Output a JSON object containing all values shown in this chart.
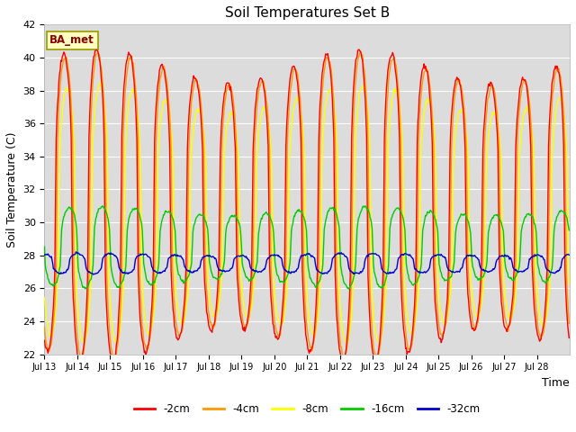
{
  "title": "Soil Temperatures Set B",
  "xlabel": "Time",
  "ylabel": "Soil Temperature (C)",
  "ylim": [
    22,
    42
  ],
  "yticks": [
    22,
    24,
    26,
    28,
    30,
    32,
    34,
    36,
    38,
    40,
    42
  ],
  "xtick_labels": [
    "Jul 13",
    "Jul 14",
    "Jul 15",
    "Jul 16",
    "Jul 17",
    "Jul 18",
    "Jul 19",
    "Jul 20",
    "Jul 21",
    "Jul 22",
    "Jul 23",
    "Jul 24",
    "Jul 25",
    "Jul 26",
    "Jul 27",
    "Jul 28"
  ],
  "legend_labels": [
    "-2cm",
    "-4cm",
    "-8cm",
    "-16cm",
    "-32cm"
  ],
  "line_colors": [
    "#ff0000",
    "#ff9900",
    "#ffff00",
    "#00cc00",
    "#0000cc"
  ],
  "annotation_text": "BA_met",
  "annotation_fg": "#8b0000",
  "annotation_bg": "#ffffc0",
  "annotation_edge": "#999900",
  "bg_color": "#dcdcdc",
  "grid_color": "#ffffff",
  "n_days": 16,
  "pts_per_day": 48
}
